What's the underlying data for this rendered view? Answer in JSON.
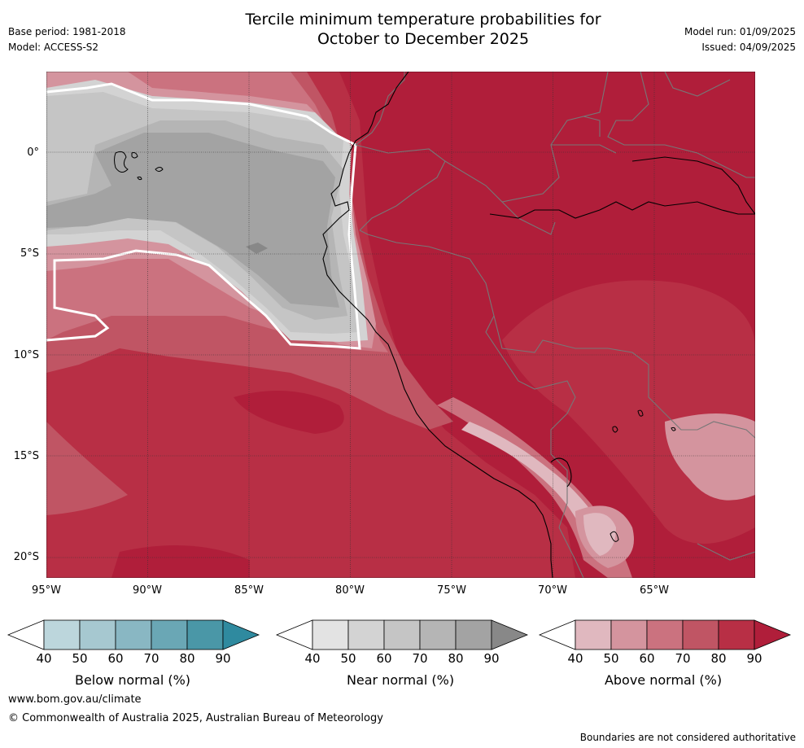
{
  "header": {
    "title_line1": "Tercile minimum temperature probabilities for",
    "title_line2": "October to December 2025",
    "base_period": "Base period: 1981-2018",
    "model": "Model: ACCESS-S2",
    "model_run": "Model run: 01/09/2025",
    "issued": "Issued: 04/09/2025"
  },
  "map": {
    "lat_labels": [
      "0°",
      "5°S",
      "10°S",
      "15°S",
      "20°S"
    ],
    "lon_labels": [
      "95°W",
      "90°W",
      "85°W",
      "80°W",
      "75°W",
      "70°W",
      "65°W"
    ]
  },
  "colorbars": [
    {
      "label": "Below normal (%)",
      "ticks": [
        "40",
        "50",
        "60",
        "70",
        "80",
        "90"
      ],
      "colors": [
        "#ffffff",
        "#bcd6dc",
        "#a6c8d0",
        "#89b7c3",
        "#6aa7b5",
        "#4a97a7",
        "#2f8a9f"
      ]
    },
    {
      "label": "Near normal (%)",
      "ticks": [
        "40",
        "50",
        "60",
        "70",
        "80",
        "90"
      ],
      "colors": [
        "#ffffff",
        "#e3e3e3",
        "#d3d3d3",
        "#c5c5c5",
        "#b5b5b5",
        "#a3a3a3",
        "#888888"
      ]
    },
    {
      "label": "Above normal (%)",
      "ticks": [
        "40",
        "50",
        "60",
        "70",
        "80",
        "90"
      ],
      "colors": [
        "#ffffff",
        "#e0b8bf",
        "#d4949e",
        "#cb727f",
        "#c05564",
        "#b82f45",
        "#b01e3a"
      ]
    }
  ],
  "footer": {
    "url": "www.bom.gov.au/climate",
    "copyright": "© Commonwealth of Australia 2025, Australian Bureau of Meteorology",
    "disclaimer": "Boundaries are not considered authoritative"
  }
}
